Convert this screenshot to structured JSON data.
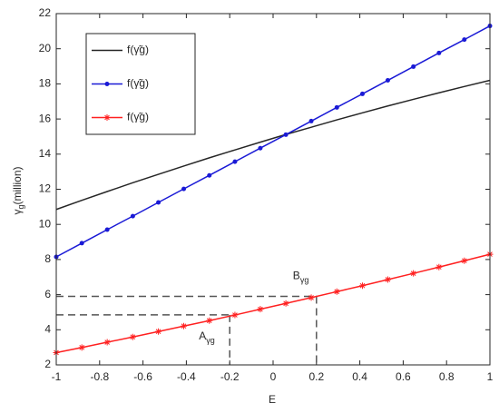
{
  "chart_data": {
    "type": "line",
    "xlabel": "E",
    "ylabel": [
      "γ",
      "g",
      "(million)"
    ],
    "x": [
      -1,
      -0.882,
      -0.765,
      -0.647,
      -0.529,
      -0.412,
      -0.294,
      -0.176,
      -0.059,
      0.059,
      0.176,
      0.294,
      0.412,
      0.529,
      0.647,
      0.765,
      0.882,
      1
    ],
    "series": [
      {
        "name": "f(γ̃g)",
        "color": "#262626",
        "marker": "none",
        "values": [
          10.85,
          11.37,
          11.87,
          12.37,
          12.85,
          13.32,
          13.79,
          14.24,
          14.68,
          15.12,
          15.53,
          15.95,
          16.35,
          16.74,
          17.12,
          17.49,
          17.85,
          18.2
        ]
      },
      {
        "name": "f(γ̃g)",
        "color": "#1a1ad6",
        "marker": "dot",
        "values": [
          8.15,
          8.93,
          9.7,
          10.47,
          11.25,
          12.02,
          12.79,
          13.57,
          14.34,
          15.11,
          15.88,
          16.66,
          17.43,
          18.2,
          18.98,
          19.76,
          20.52,
          21.3
        ]
      },
      {
        "name": "f(γ̃g)",
        "color": "#ff2020",
        "marker": "asterisk",
        "values": [
          2.7,
          2.99,
          3.29,
          3.59,
          3.9,
          4.21,
          4.52,
          4.84,
          5.17,
          5.5,
          5.83,
          6.17,
          6.51,
          6.86,
          7.21,
          7.57,
          7.93,
          8.3
        ]
      }
    ],
    "guides": [
      {
        "label": "A",
        "sub": "γg",
        "x": -0.2,
        "y": 4.85
      },
      {
        "label": "B",
        "sub": "γg",
        "x": 0.2,
        "y": 5.9
      }
    ],
    "xlim": [
      -1,
      1
    ],
    "xticks": [
      -1,
      -0.8,
      -0.6,
      -0.4,
      -0.2,
      0,
      0.2,
      0.4,
      0.6,
      0.8,
      1
    ],
    "ylim": [
      2,
      22
    ],
    "yticks": [
      2,
      4,
      6,
      8,
      10,
      12,
      14,
      16,
      18,
      20,
      22
    ],
    "grid": false,
    "legend": "upper left"
  }
}
